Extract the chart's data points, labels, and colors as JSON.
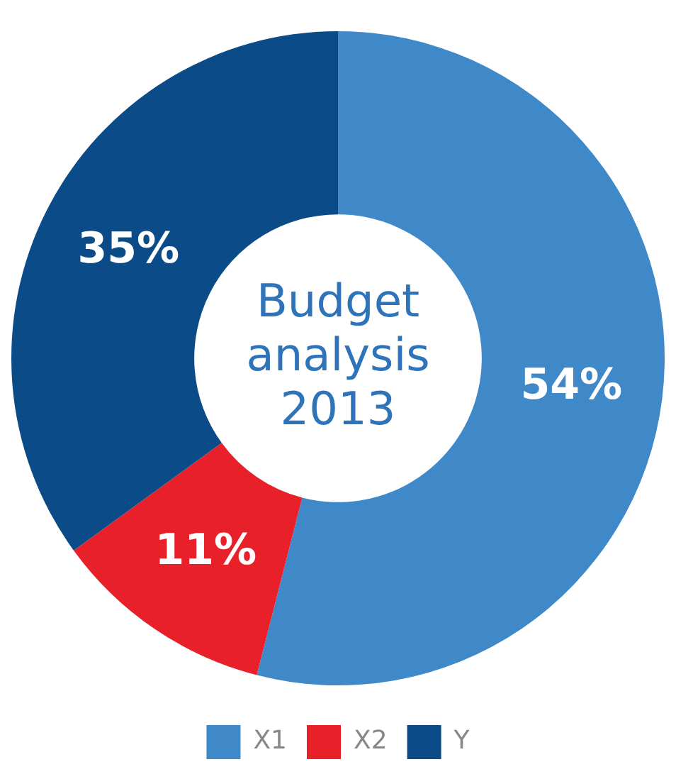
{
  "chart_data": {
    "type": "donut",
    "title": "Budget analysis 2013",
    "categories": [
      "X1",
      "X2",
      "Y"
    ],
    "values": [
      54,
      11,
      35
    ],
    "colors": [
      "#3f89c9",
      "#e8202a",
      "#0b4c88"
    ],
    "value_labels": [
      "54%",
      "11%",
      "35%"
    ],
    "legend": "bottom"
  }
}
